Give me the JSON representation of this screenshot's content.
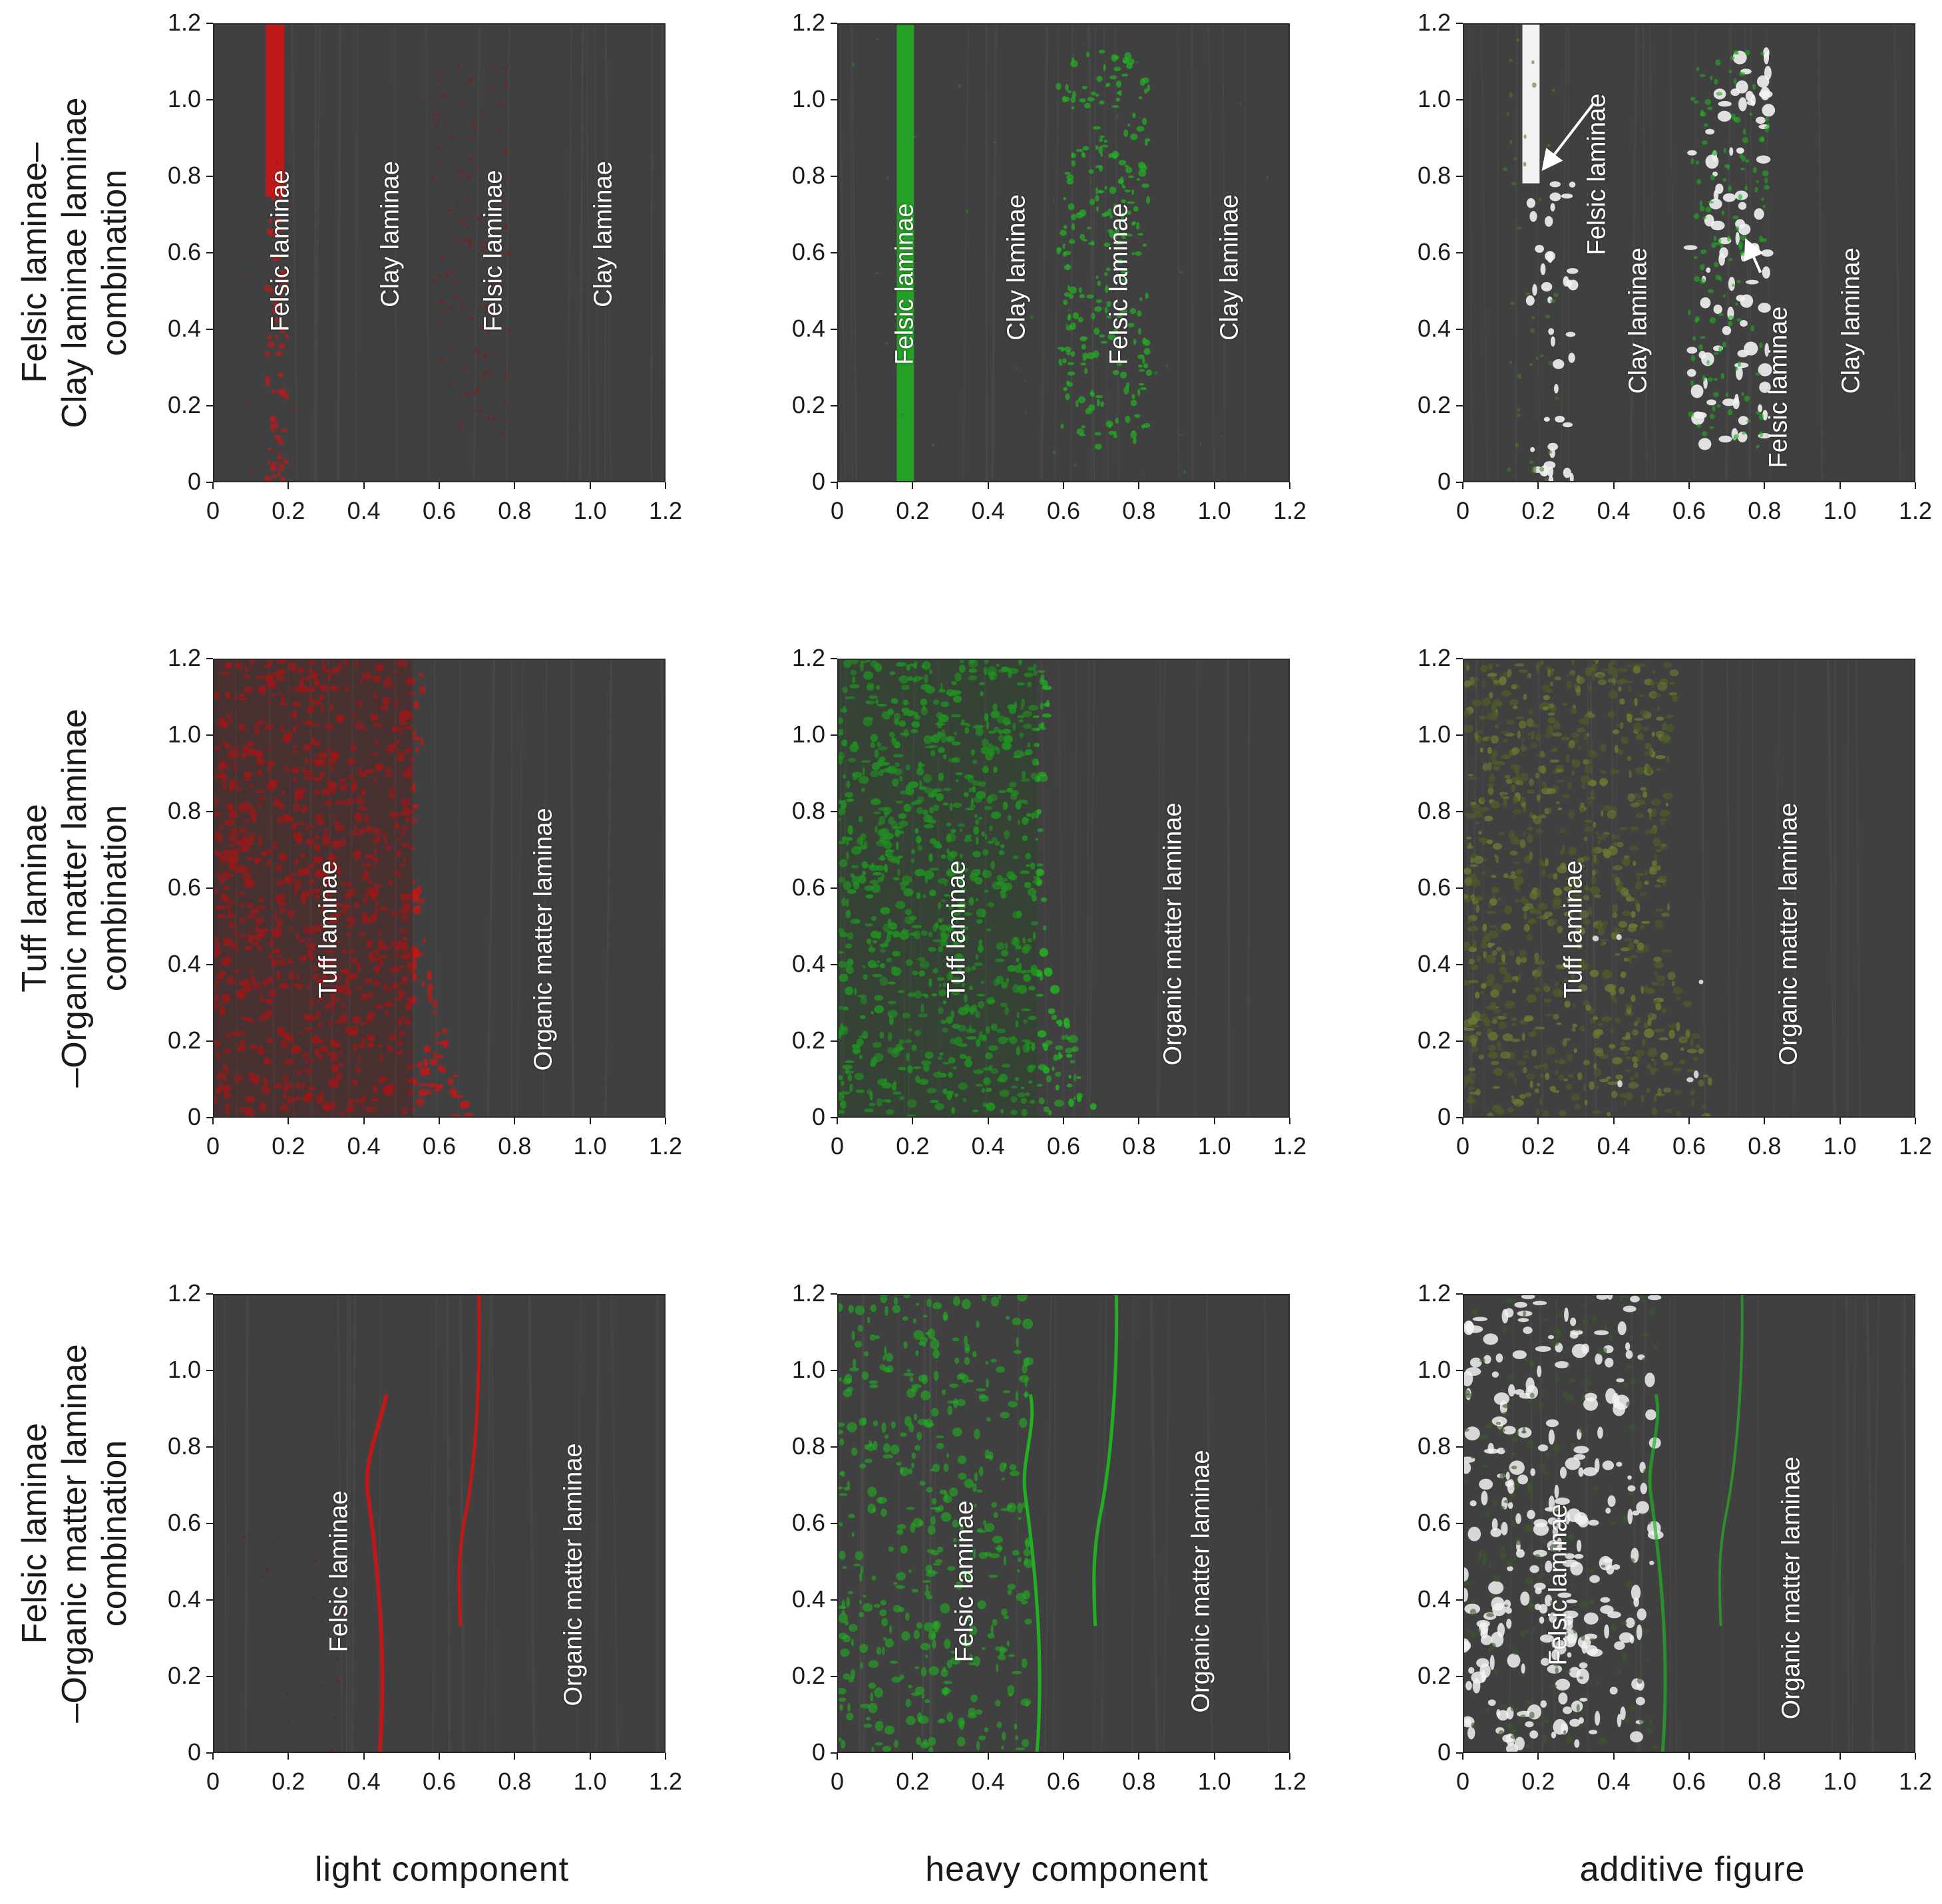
{
  "axis_ticks": [
    "0",
    "0.2",
    "0.4",
    "0.6",
    "0.8",
    "1.0",
    "1.2"
  ],
  "row_labels": [
    [
      "Felsic laminae–",
      "Clay laminae  laminae",
      "combination"
    ],
    [
      "Tuff laminae",
      "–Organic matter laminae",
      "combination"
    ],
    [
      "Felsic laminae",
      "–Organic matter laminae",
      "combination"
    ]
  ],
  "column_labels": [
    "light component",
    "heavy component",
    "additive  figure"
  ],
  "colors": {
    "light": "#c01818",
    "heavy": "#22b022",
    "additive": "#f2f2f2",
    "background": "#404040"
  },
  "panels": [
    {
      "id": "r1c1",
      "labels": [
        "Felsic laminae",
        "Clay laminae",
        "Felsic laminae",
        "Clay laminae"
      ]
    },
    {
      "id": "r1c2",
      "labels": [
        "Felsic laminae",
        "Clay laminae",
        "Felsic laminae",
        "Clay laminae"
      ]
    },
    {
      "id": "r1c3",
      "labels": [
        "Felsic laminae",
        "Clay laminae",
        "Felsic laminae",
        "Clay laminae"
      ]
    },
    {
      "id": "r2c1",
      "labels": [
        "Tuff laminae",
        "Organic matter laminae"
      ]
    },
    {
      "id": "r2c2",
      "labels": [
        "Tuff laminae",
        "Organic matter laminae"
      ]
    },
    {
      "id": "r2c3",
      "labels": [
        "Tuff laminae",
        "Organic matter laminae"
      ]
    },
    {
      "id": "r3c1",
      "labels": [
        "Felsic laminae",
        "Organic matter laminae"
      ]
    },
    {
      "id": "r3c2",
      "labels": [
        "Felsic laminae",
        "Organic matter laminae"
      ]
    },
    {
      "id": "r3c3",
      "labels": [
        "Felsic laminae",
        "Organic matter laminae"
      ]
    }
  ]
}
